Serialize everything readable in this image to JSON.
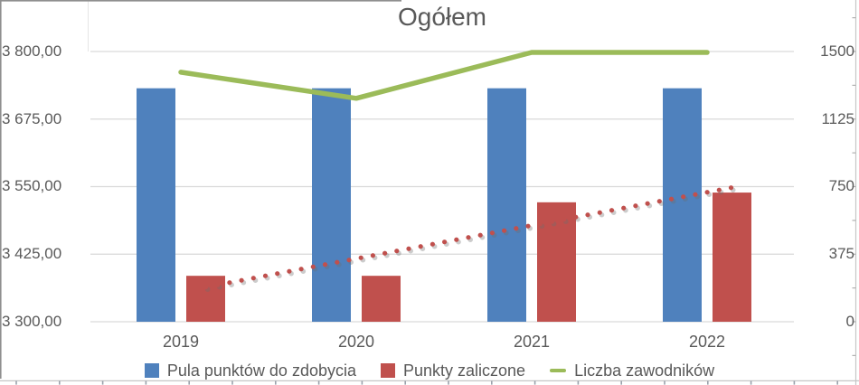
{
  "chart_data": {
    "type": "combo-bar-line",
    "title": "Ogółem",
    "categories": [
      "2019",
      "2020",
      "2021",
      "2022"
    ],
    "series": [
      {
        "name": "Pula punktów do zdobycia",
        "type": "bar",
        "axis": "left",
        "color": "#4F81BD",
        "values": [
          3732,
          3732,
          3732,
          3732
        ]
      },
      {
        "name": "Punkty zaliczone",
        "type": "bar",
        "axis": "left",
        "color": "#C0504D",
        "values": [
          3385,
          3385,
          3521,
          3539
        ]
      },
      {
        "name": "Liczba zawodników",
        "type": "line",
        "axis": "right",
        "color": "#9BBB59",
        "values": [
          1385,
          1240,
          1495,
          1495
        ]
      }
    ],
    "trendline": {
      "for_series": "Punkty zaliczone",
      "style": "dotted",
      "color": "#C0504D",
      "start_value": 3364,
      "end_value": 3548
    },
    "left_axis": {
      "min": 3300,
      "max": 3800,
      "tick_labels": [
        "3 800,00",
        "3 675,00",
        "3 550,00",
        "3 425,00",
        "3 300,00"
      ]
    },
    "right_axis": {
      "min": 0,
      "max": 1500,
      "tick_labels": [
        "1500",
        "1125",
        "750",
        "375",
        "0"
      ]
    },
    "grid": true,
    "legend": {
      "position": "bottom",
      "entries": [
        {
          "label": "Pula punktów do zdobycia",
          "swatch": "square",
          "color": "#4F81BD"
        },
        {
          "label": "Punkty zaliczone",
          "swatch": "square",
          "color": "#C0504D"
        },
        {
          "label": "Liczba zawodników",
          "swatch": "line",
          "color": "#9BBB59"
        }
      ]
    },
    "colors": {
      "grid": "#D9D9D9",
      "text": "#595959"
    }
  }
}
